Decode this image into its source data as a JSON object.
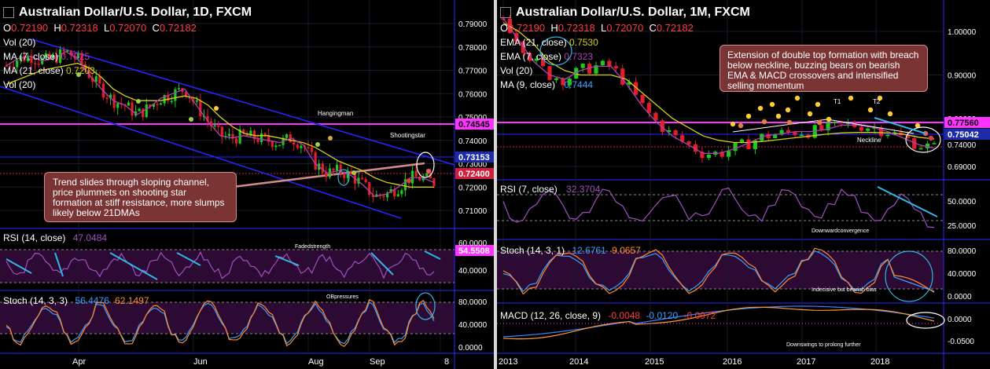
{
  "colors": {
    "bg": "#000000",
    "grid": "#1a1a2a",
    "axis": "#2a2aff",
    "up": "#1ec81e",
    "down": "#e01f2a",
    "ma7": "#b041b0",
    "ma21": "#d6cf1a",
    "channel": "#2525ff",
    "res": "#ff33ff",
    "osc_bg": "#2c0a33",
    "rsi": "#a050c0",
    "stoch_k": "#3aa0ff",
    "stoch_d": "#ff8a30",
    "macd": "#3a80ff",
    "signal": "#ff9a30",
    "arrow": "#33b5e5",
    "callout_bg": "#7a3434",
    "callout_border": "#d28a8a"
  },
  "left": {
    "title": "Australian Dollar/U.S. Dollar, 1D, FXCM",
    "ohlc": {
      "o_label": "O",
      "o": "0.72190",
      "h_label": "H",
      "h": "0.72318",
      "l_label": "L",
      "l": "0.72070",
      "c_label": "C",
      "c": "0.72182"
    },
    "vol_label": "Vol (20)",
    "ma7_label": "MA (7, close)",
    "ma7_val": "0.7225",
    "ma21_label": "MA (21, close)",
    "ma21_val": "0.7203",
    "vol2_label": "Vol (20)",
    "price_ticks": [
      "0.79000",
      "0.78000",
      "0.77000",
      "0.76000",
      "0.75000",
      "0.74000",
      "0.73000",
      "0.72000",
      "0.71000"
    ],
    "level_labels": [
      {
        "text": "0.74545",
        "color": "#ff33ff"
      },
      {
        "text": "0.73153",
        "color": "#1d2ba8"
      },
      {
        "text": "0.72400",
        "color": "#d01f3a"
      }
    ],
    "annotations": [
      "Hangingman",
      "Shootingstar"
    ],
    "callout": "Trend slides through sloping channel, price plummets on shooting star formation at stiff resistance, more slumps likely below 21DMAs",
    "rsi_label": "RSI (14, close)",
    "rsi_val": "47.0484",
    "rsi_ticks": [
      "60.0000",
      "40.0000"
    ],
    "rsi_badge": "54.5508",
    "rsi_note": "Fadedstrength",
    "stoch_label": "Stoch (14, 3, 3)",
    "stoch_k": "56.4476",
    "stoch_d": "62.1497",
    "stoch_note": "OBpressures",
    "stoch_ticks": [
      "80.0000",
      "40.0000",
      "0.0000"
    ],
    "x_labels": [
      "Apr",
      "Jun",
      "Aug",
      "Sep",
      "8"
    ]
  },
  "right": {
    "title": "Australian Dollar/U.S. Dollar, 1M, FXCM",
    "ohlc": {
      "o_label": "O",
      "o": "0.72190",
      "h_label": "H",
      "h": "0.72318",
      "l_label": "L",
      "l": "0.72070",
      "c_label": "C",
      "c": "0.72182"
    },
    "ema21_label": "EMA (21, close)",
    "ema21_val": "0.7530",
    "ema7_label": "EMA (7, close)",
    "ema7_val": "0.7323",
    "vol_label": "Vol (20)",
    "ma9_label": "MA (9, close)",
    "ma9_val": "0.7444",
    "price_ticks": [
      "1.00000",
      "0.90000",
      "0.80000",
      "0.69000"
    ],
    "level_labels": [
      {
        "text": "0.77560",
        "color": "#ff33ff"
      },
      {
        "text": "0.75042",
        "color": "#1d2ba8"
      },
      {
        "text": "0.74000",
        "color": "#000000"
      }
    ],
    "annotations": [
      "T1",
      "T2",
      "Neckline"
    ],
    "callout": "Extension of double top formation with breach below neckline, buzzing bears on bearish EMA & MACD crossovers and intensified selling momentum",
    "rsi_label": "RSI (7, close)",
    "rsi_val": "32.3704",
    "rsi_ticks": [
      "50.0000",
      "25.0000"
    ],
    "rsi_note": "Downwardconvergence",
    "stoch_label": "Stoch (14, 3, 1)",
    "stoch_k": "12.6761",
    "stoch_d": "9.0657",
    "stoch_ticks": [
      "80.0000",
      "40.0000",
      "0.0000"
    ],
    "stoch_note": "Indecisive but bearish bias",
    "macd_label": "MACD (12, 26, close, 9)",
    "macd_vals": [
      "-0.0048",
      "-0.0120",
      "-0.0072"
    ],
    "macd_ticks": [
      "0.0000",
      "-0.0500"
    ],
    "macd_note": "Downswings to prolong further",
    "x_labels": [
      "2013",
      "2014",
      "2015",
      "2016",
      "2017",
      "2018"
    ]
  },
  "chart_data": [
    {
      "type": "line",
      "title": "Australian Dollar/U.S. Dollar, 1D, FXCM",
      "ylim": [
        0.705,
        0.793
      ],
      "x_labels": [
        "Apr",
        "Jun",
        "Aug",
        "Sep",
        "8"
      ],
      "series": [
        {
          "name": "MA (7, close)",
          "values": [
            0.772,
            0.775,
            0.776,
            0.774,
            0.775,
            0.778,
            0.775,
            0.768,
            0.762,
            0.757,
            0.755,
            0.751,
            0.754,
            0.758,
            0.76,
            0.762,
            0.755,
            0.748,
            0.742,
            0.741,
            0.742,
            0.741,
            0.74,
            0.739,
            0.741,
            0.738,
            0.73,
            0.726,
            0.727,
            0.725,
            0.721,
            0.716,
            0.717,
            0.72,
            0.724,
            0.724,
            0.722
          ]
        },
        {
          "name": "MA (21, close)",
          "values": [
            0.764,
            0.766,
            0.768,
            0.77,
            0.771,
            0.772,
            0.773,
            0.771,
            0.767,
            0.762,
            0.759,
            0.757,
            0.757,
            0.757,
            0.758,
            0.759,
            0.758,
            0.755,
            0.75,
            0.746,
            0.743,
            0.742,
            0.742,
            0.741,
            0.74,
            0.739,
            0.737,
            0.734,
            0.731,
            0.729,
            0.727,
            0.724,
            0.722,
            0.721,
            0.72,
            0.72,
            0.72
          ]
        }
      ]
    },
    {
      "type": "line",
      "title": "Australian Dollar/U.S. Dollar, 1M, FXCM",
      "ylim": [
        0.66,
        1.03
      ],
      "x_labels": [
        "2013",
        "2014",
        "2015",
        "2016",
        "2017",
        "2018"
      ],
      "series": [
        {
          "name": "EMA (21, close)",
          "values": [
            1.02,
            1.0,
            0.97,
            0.93,
            0.91,
            0.9,
            0.9,
            0.9,
            0.89,
            0.86,
            0.83,
            0.8,
            0.78,
            0.76,
            0.75,
            0.745,
            0.745,
            0.748,
            0.752,
            0.756,
            0.76,
            0.764,
            0.767,
            0.768,
            0.768,
            0.767,
            0.764,
            0.757,
            0.753
          ]
        },
        {
          "name": "EMA (7, close)",
          "values": [
            1.03,
            0.98,
            0.93,
            0.9,
            0.89,
            0.91,
            0.92,
            0.92,
            0.88,
            0.83,
            0.79,
            0.76,
            0.74,
            0.72,
            0.72,
            0.73,
            0.745,
            0.76,
            0.765,
            0.77,
            0.77,
            0.775,
            0.785,
            0.785,
            0.78,
            0.77,
            0.755,
            0.74,
            0.732
          ]
        }
      ]
    }
  ]
}
